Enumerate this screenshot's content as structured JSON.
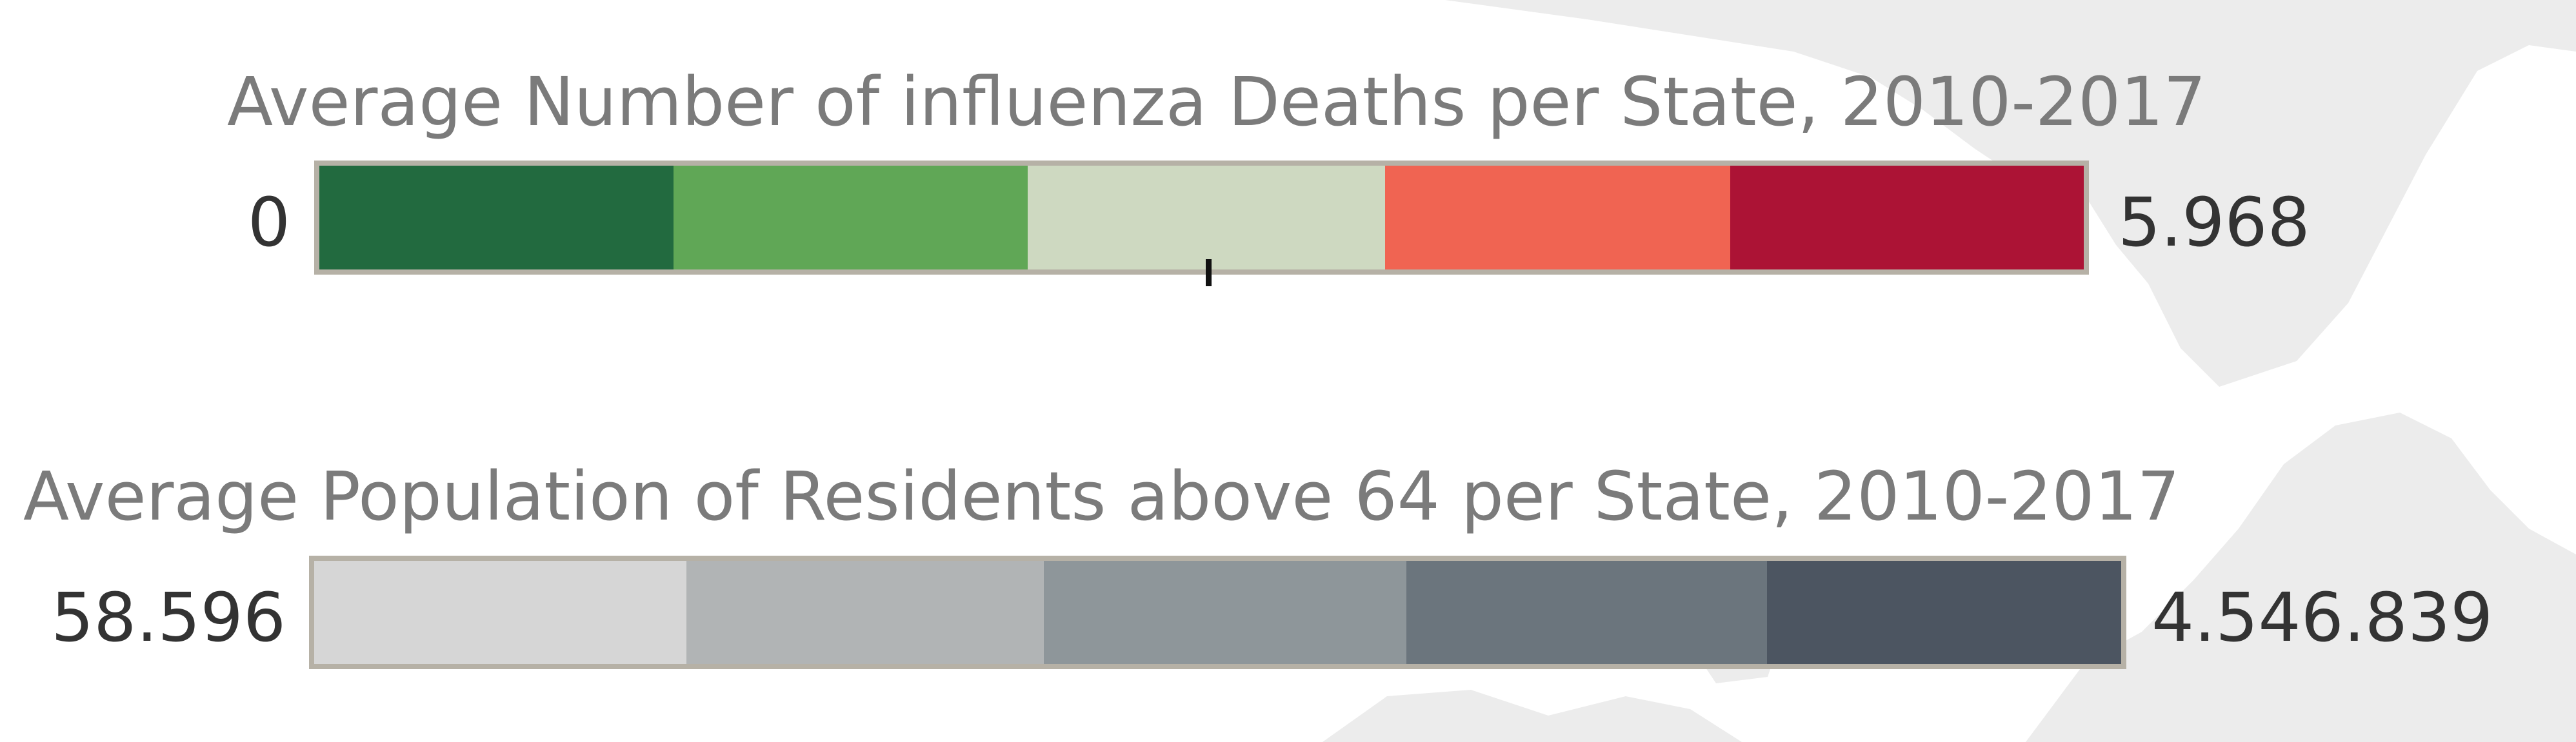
{
  "colors": {
    "title_text": "#7b7b7b",
    "label_text": "#333333",
    "bar_border": "#b6b1a6",
    "map_shape": "#ececec"
  },
  "legends": [
    {
      "title": "Average Number of influenza Deaths per State, 2010-2017",
      "min_label": "0",
      "max_label": "5.968",
      "segment_colors": [
        "#226a3f",
        "#60a756",
        "#ced9c1",
        "#f06452",
        "#ac1335"
      ],
      "marker_fraction": 0.504
    },
    {
      "title": "Average Population of Residents above 64 per State, 2010-2017",
      "min_label": "58.596",
      "max_label": "4.546.839",
      "segment_colors": [
        "#d6d6d6",
        "#b1b4b5",
        "#8e969a",
        "#6b757d",
        "#4c5561"
      ]
    }
  ],
  "chart_data": [
    {
      "type": "heatmap",
      "title": "Average Number of influenza Deaths per State, 2010-2017",
      "range": [
        0,
        5968
      ],
      "range_labels": [
        "0",
        "5.968"
      ],
      "bins": 5,
      "palette": [
        "#226a3f",
        "#60a756",
        "#ced9c1",
        "#f06452",
        "#ac1335"
      ],
      "marker_fraction": 0.504
    },
    {
      "type": "heatmap",
      "title": "Average Population of Residents above 64 per State, 2010-2017",
      "range": [
        58596,
        4546839
      ],
      "range_labels": [
        "58.596",
        "4.546.839"
      ],
      "bins": 5,
      "palette": [
        "#d6d6d6",
        "#b1b4b5",
        "#8e969a",
        "#6b757d",
        "#4c5561"
      ]
    }
  ]
}
